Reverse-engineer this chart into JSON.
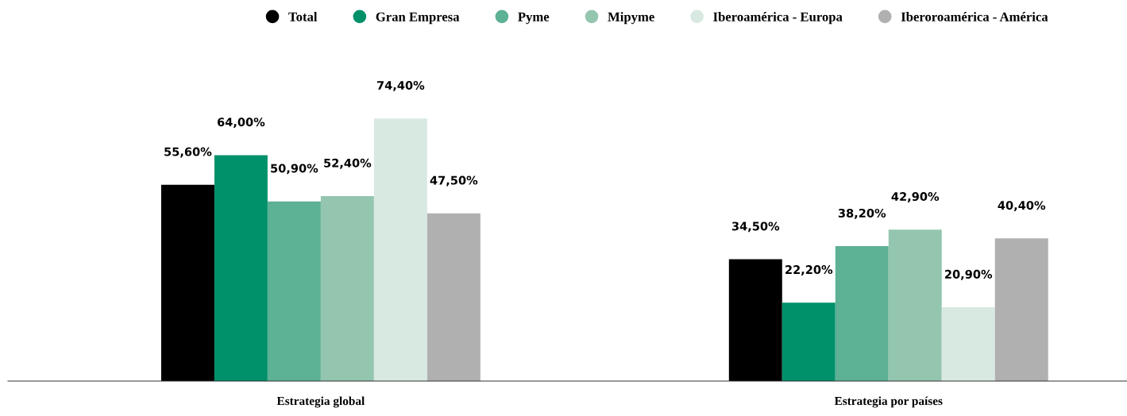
{
  "chart_data": {
    "type": "bar",
    "categories": [
      "Estrategia global",
      "Estrategia por países"
    ],
    "series": [
      {
        "name": "Total",
        "color": "#000000",
        "values": [
          55.6,
          34.5
        ],
        "value_labels": [
          "55,60%",
          "34,50%"
        ]
      },
      {
        "name": "Gran Empresa",
        "color": "#00916a",
        "values": [
          64.0,
          22.2
        ],
        "value_labels": [
          "64,00%",
          "22,20%"
        ]
      },
      {
        "name": "Pyme",
        "color": "#5db195",
        "values": [
          50.9,
          38.2
        ],
        "value_labels": [
          "50,90%",
          "38,20%"
        ]
      },
      {
        "name": "Mipyme",
        "color": "#94c6af",
        "values": [
          52.4,
          42.9
        ],
        "value_labels": [
          "52,40%",
          "42,90%"
        ]
      },
      {
        "name": "Iberoamérica - Europa",
        "color": "#d8e9e1",
        "values": [
          74.4,
          20.9
        ],
        "value_labels": [
          "74,40%",
          "20,90%"
        ]
      },
      {
        "name": "Iberoroamérica - América",
        "color": "#b0b0b0",
        "values": [
          47.5,
          40.4
        ],
        "value_labels": [
          "47,50%",
          "40,40%"
        ]
      }
    ],
    "legend": "top",
    "grid": false,
    "tick_labels": "x",
    "marker": "circle"
  }
}
